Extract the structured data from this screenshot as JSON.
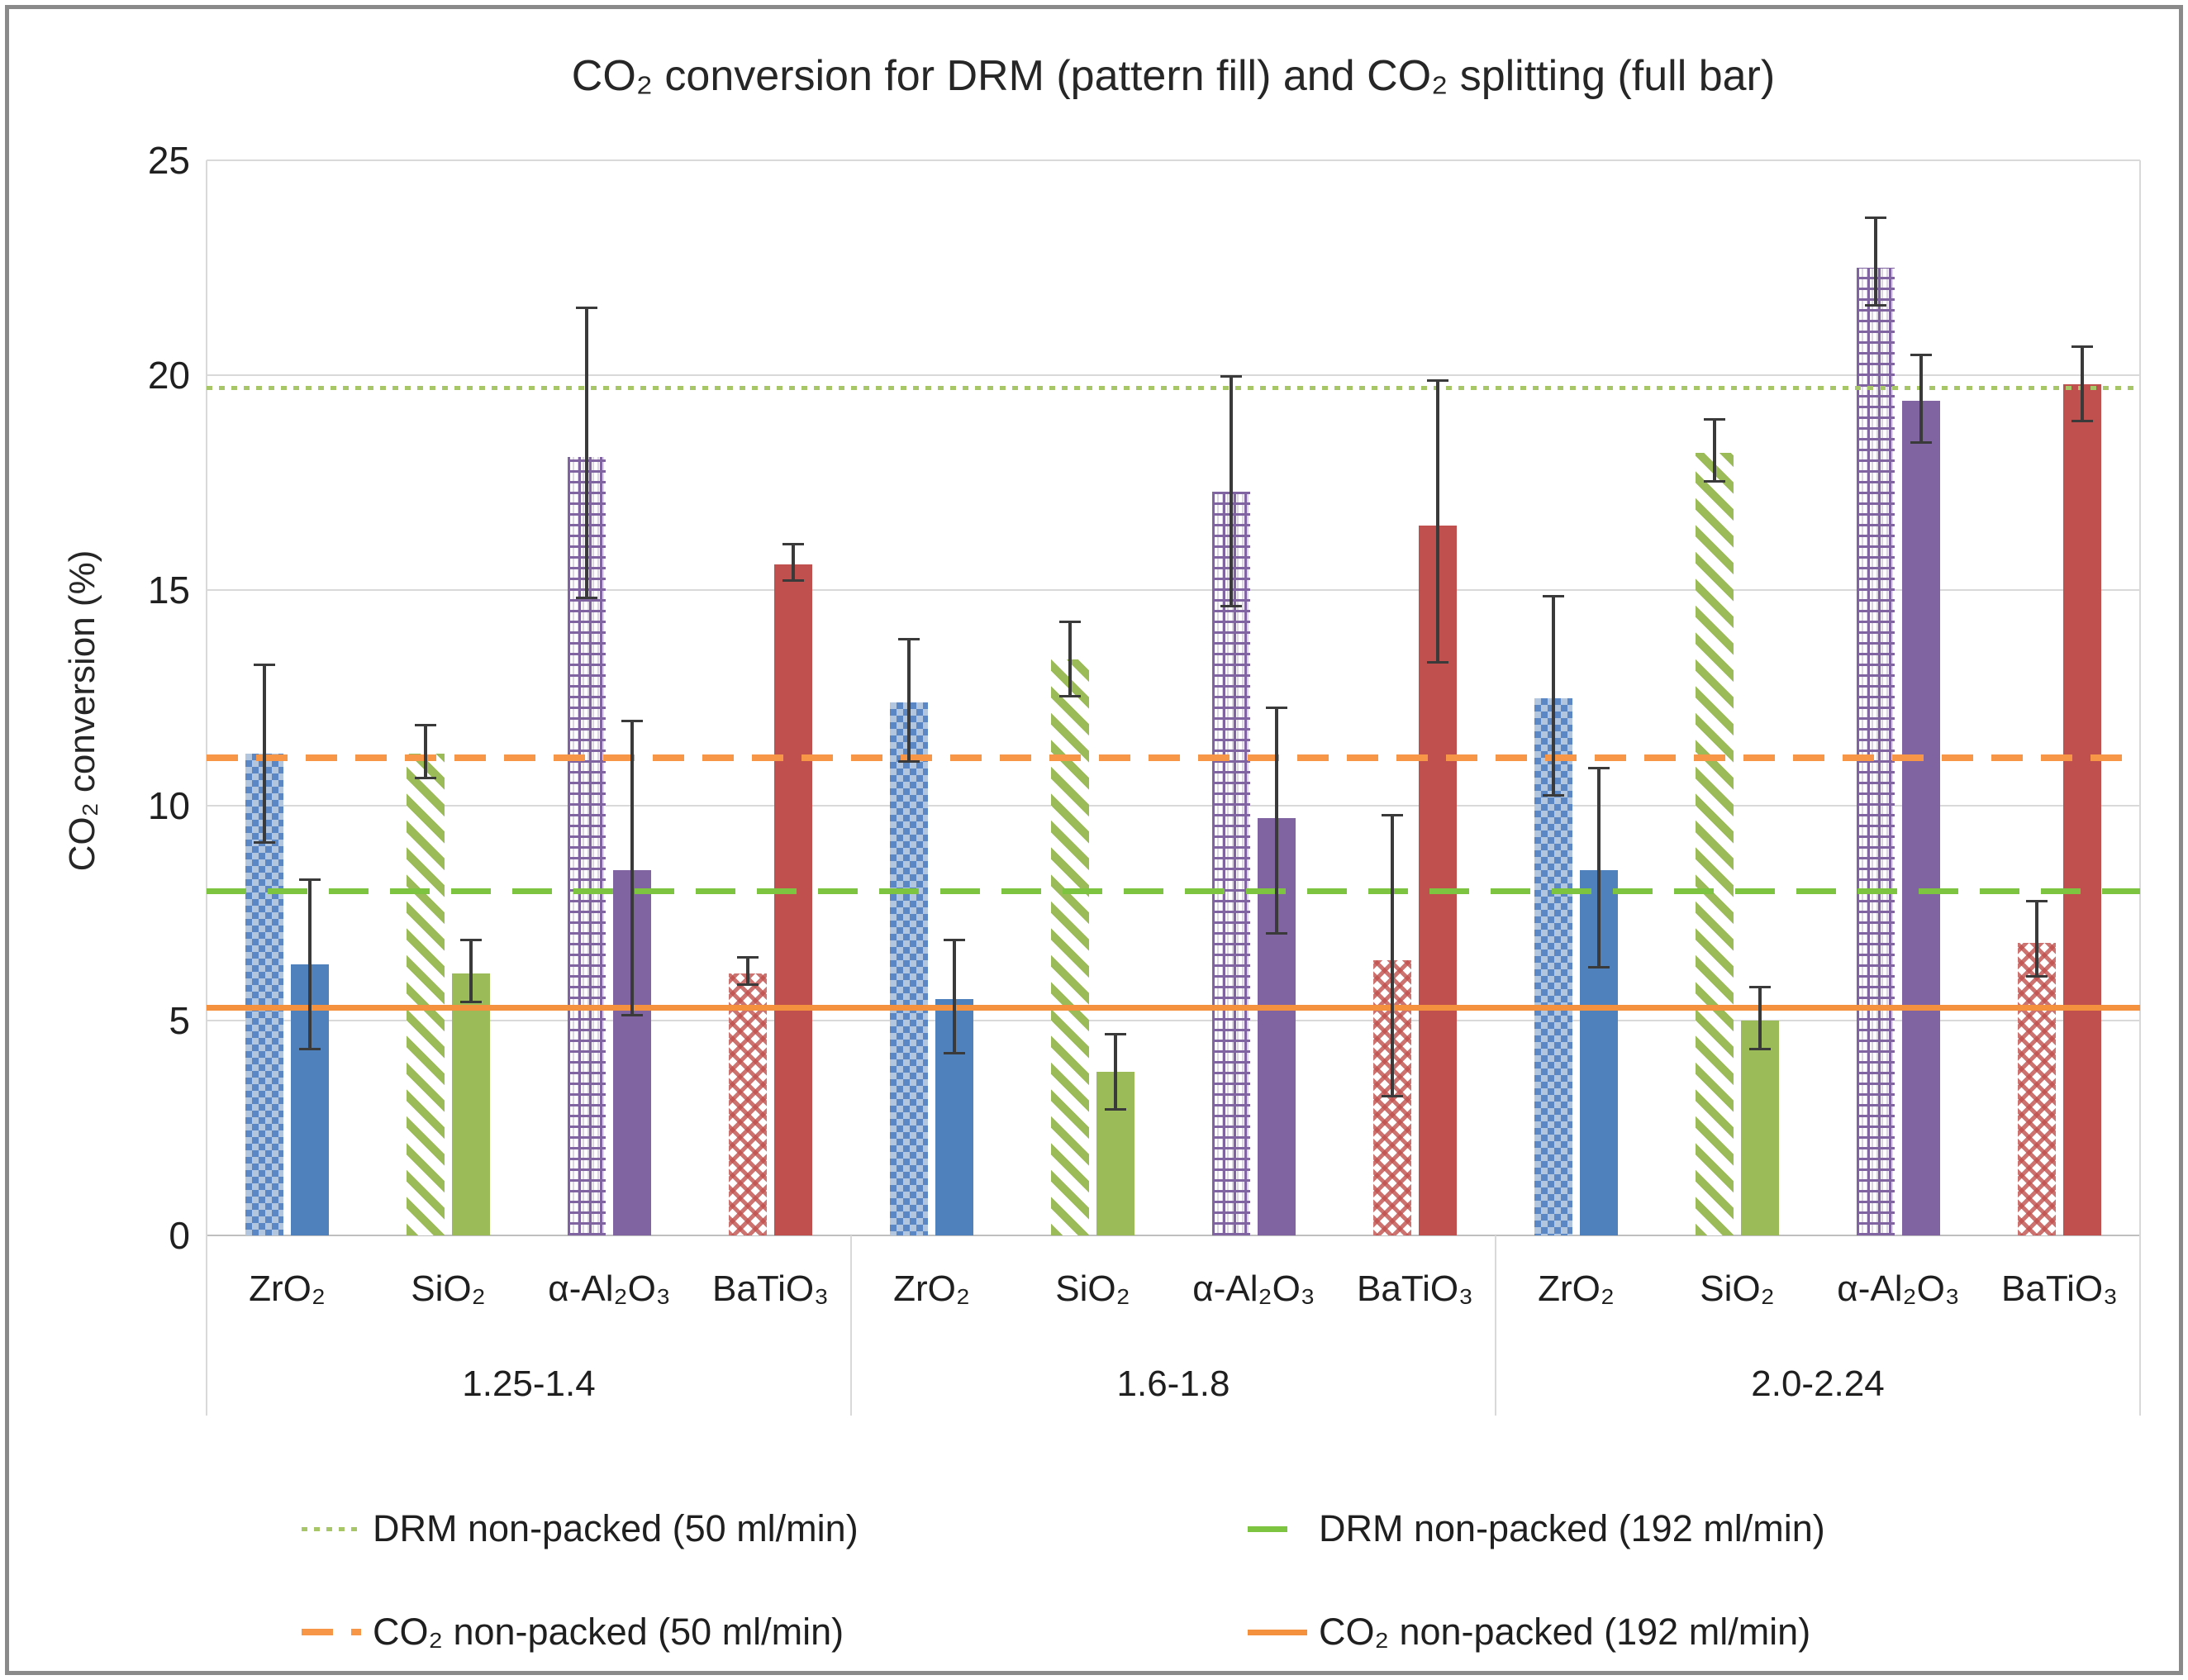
{
  "chart_data": {
    "type": "bar",
    "title": "CO₂ conversion for DRM (pattern fill) and CO₂ splitting (full bar)",
    "ylabel": "CO₂ conversion (%)",
    "ylim": [
      0,
      25
    ],
    "yticks": [
      0,
      5,
      10,
      15,
      20,
      25
    ],
    "grid": true,
    "legend_position": "bottom",
    "materials": [
      "ZrO₂",
      "SiO₂",
      "α-Al₂O₃",
      "BaTiO₃"
    ],
    "material_colors": [
      "#4F81BD",
      "#9BBB59",
      "#8064A2",
      "#C0504D"
    ],
    "material_patterns": [
      "checkerboard",
      "diagonal-stripes",
      "grid-plaid",
      "dot-lattice"
    ],
    "series_meta": [
      {
        "name": "DRM (pattern fill)",
        "style": "pattern"
      },
      {
        "name": "CO₂ splitting (full bar)",
        "style": "solid"
      }
    ],
    "groups": [
      {
        "label": "1.25-1.4",
        "bars": [
          {
            "material": "ZrO₂",
            "drm": {
              "value": 11.2,
              "err_lo": 9.1,
              "err_hi": 13.3
            },
            "split": {
              "value": 6.3,
              "err_lo": 4.3,
              "err_hi": 8.3
            }
          },
          {
            "material": "SiO₂",
            "drm": {
              "value": 11.2,
              "err_lo": 10.6,
              "err_hi": 11.9
            },
            "split": {
              "value": 6.1,
              "err_lo": 5.4,
              "err_hi": 6.9
            }
          },
          {
            "material": "α-Al₂O₃",
            "drm": {
              "value": 18.1,
              "err_lo": 14.8,
              "err_hi": 21.6
            },
            "split": {
              "value": 8.5,
              "err_lo": 5.1,
              "err_hi": 12.0
            }
          },
          {
            "material": "BaTiO₃",
            "drm": {
              "value": 6.1,
              "err_lo": 5.8,
              "err_hi": 6.5
            },
            "split": {
              "value": 15.6,
              "err_lo": 15.2,
              "err_hi": 16.1
            }
          }
        ]
      },
      {
        "label": "1.6-1.8",
        "bars": [
          {
            "material": "ZrO₂",
            "drm": {
              "value": 12.4,
              "err_lo": 11.0,
              "err_hi": 13.9
            },
            "split": {
              "value": 5.5,
              "err_lo": 4.2,
              "err_hi": 6.9
            }
          },
          {
            "material": "SiO₂",
            "drm": {
              "value": 13.4,
              "err_lo": 12.5,
              "err_hi": 14.3
            },
            "split": {
              "value": 3.8,
              "err_lo": 2.9,
              "err_hi": 4.7
            }
          },
          {
            "material": "α-Al₂O₃",
            "drm": {
              "value": 17.3,
              "err_lo": 14.6,
              "err_hi": 20.0
            },
            "split": {
              "value": 9.7,
              "err_lo": 7.0,
              "err_hi": 12.3
            }
          },
          {
            "material": "BaTiO₃",
            "drm": {
              "value": 6.4,
              "err_lo": 3.2,
              "err_hi": 9.8
            },
            "split": {
              "value": 16.5,
              "err_lo": 13.3,
              "err_hi": 19.9
            }
          }
        ]
      },
      {
        "label": "2.0-2.24",
        "bars": [
          {
            "material": "ZrO₂",
            "drm": {
              "value": 12.5,
              "err_lo": 10.2,
              "err_hi": 14.9
            },
            "split": {
              "value": 8.5,
              "err_lo": 6.2,
              "err_hi": 10.9
            }
          },
          {
            "material": "SiO₂",
            "drm": {
              "value": 18.2,
              "err_lo": 17.5,
              "err_hi": 19.0
            },
            "split": {
              "value": 5.0,
              "err_lo": 4.3,
              "err_hi": 5.8
            }
          },
          {
            "material": "α-Al₂O₃",
            "drm": {
              "value": 22.5,
              "err_lo": 21.6,
              "err_hi": 23.7
            },
            "split": {
              "value": 19.4,
              "err_lo": 18.4,
              "err_hi": 20.5
            }
          },
          {
            "material": "BaTiO₃",
            "drm": {
              "value": 6.8,
              "err_lo": 6.0,
              "err_hi": 7.8
            },
            "split": {
              "value": 19.8,
              "err_lo": 18.9,
              "err_hi": 20.7
            }
          }
        ]
      }
    ],
    "reference_lines": [
      {
        "label": "DRM non-packed (50 ml/min)",
        "value": 19.7,
        "color": "#A6C667",
        "dash": "dotted"
      },
      {
        "label": "DRM non-packed (192 ml/min)",
        "value": 8.0,
        "color": "#7DC540",
        "dash": "long-dash"
      },
      {
        "label": "CO₂ non-packed (50 ml/min)",
        "value": 11.1,
        "color": "#F79646",
        "dash": "dash"
      },
      {
        "label": "CO₂ non-packed (192 ml/min)",
        "value": 5.3,
        "color": "#F4913E",
        "dash": "solid"
      }
    ]
  }
}
